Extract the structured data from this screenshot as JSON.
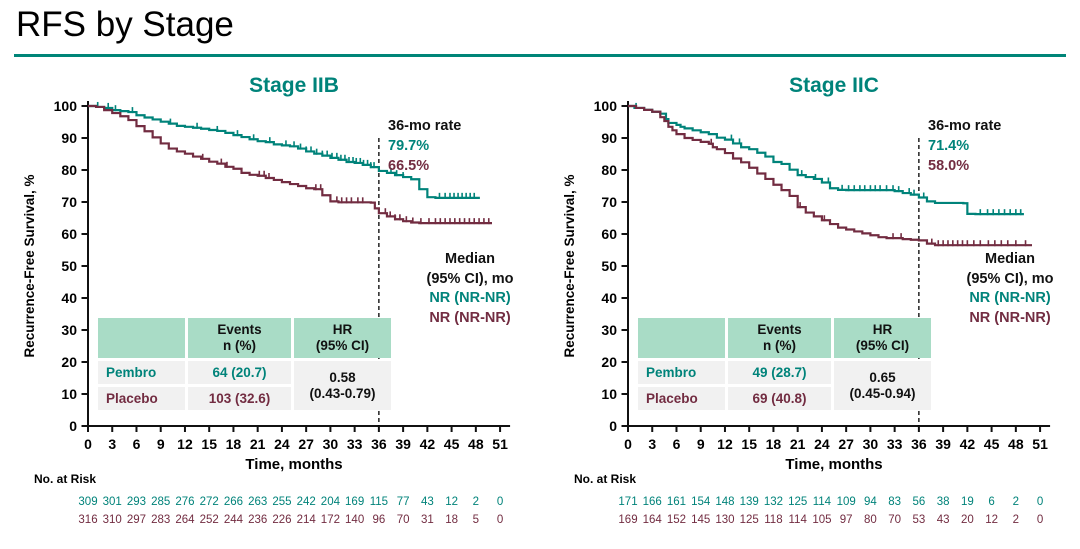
{
  "page": {
    "title": "RFS by Stage"
  },
  "colors": {
    "teal": "#00837A",
    "maroon": "#722C41",
    "header_green": "#A9DCC6",
    "cell_gray": "#F1F1F1",
    "rule_teal": "#008578"
  },
  "chart_data": [
    {
      "type": "line",
      "title": "Stage IIB",
      "xlabel": "Time, months",
      "ylabel": "Recurrence-Free Survival, %",
      "xlim": [
        0,
        51
      ],
      "ylim": [
        0,
        100
      ],
      "x_ticks": [
        0,
        3,
        6,
        9,
        12,
        15,
        18,
        21,
        24,
        27,
        30,
        33,
        36,
        39,
        42,
        45,
        48,
        51
      ],
      "y_ticks": [
        0,
        10,
        20,
        30,
        40,
        50,
        60,
        70,
        80,
        90,
        100
      ],
      "grid": false,
      "rate": {
        "label": "36-mo rate",
        "x": 36,
        "pembro": "79.7%",
        "placebo": "66.5%"
      },
      "median": {
        "line1": "Median",
        "line2": "(95% CI), mo",
        "pembro": "NR (NR-NR)",
        "placebo": "NR (NR-NR)"
      },
      "events_table": {
        "header_events": [
          "Events",
          "n (%)"
        ],
        "header_hr": [
          "HR",
          "(95% CI)"
        ],
        "rows": [
          {
            "name": "Pembro",
            "events": "64 (20.7)"
          },
          {
            "name": "Placebo",
            "events": "103 (32.6)"
          }
        ],
        "hr": [
          "0.58",
          "(0.43-0.79)"
        ]
      },
      "series": [
        {
          "name": "Pembro",
          "color": "#00837A",
          "points": [
            [
              0,
              100
            ],
            [
              1,
              99.7
            ],
            [
              2,
              99.4
            ],
            [
              3,
              98.7
            ],
            [
              4,
              98.4
            ],
            [
              5,
              98.1
            ],
            [
              6,
              97.1
            ],
            [
              7,
              96.4
            ],
            [
              8,
              95.8
            ],
            [
              9,
              95.1
            ],
            [
              10,
              94.5
            ],
            [
              11,
              93.8
            ],
            [
              12,
              93.5
            ],
            [
              13,
              93.2
            ],
            [
              14,
              92.9
            ],
            [
              15,
              92.5
            ],
            [
              16,
              92.2
            ],
            [
              17,
              91.6
            ],
            [
              18,
              90.9
            ],
            [
              19,
              90.3
            ],
            [
              20,
              89.6
            ],
            [
              21,
              89.0
            ],
            [
              22,
              88.7
            ],
            [
              23,
              88.0
            ],
            [
              24,
              87.7
            ],
            [
              25,
              87.4
            ],
            [
              26,
              86.7
            ],
            [
              27,
              85.8
            ],
            [
              28,
              85.1
            ],
            [
              29,
              84.5
            ],
            [
              30,
              83.8
            ],
            [
              31,
              83.2
            ],
            [
              32,
              82.5
            ],
            [
              33,
              82.2
            ],
            [
              34,
              81.6
            ],
            [
              35,
              80.9
            ],
            [
              36,
              79.7
            ],
            [
              37,
              79.1
            ],
            [
              38,
              78.4
            ],
            [
              39,
              77.8
            ],
            [
              40,
              77.1
            ],
            [
              41,
              74.0
            ],
            [
              42,
              71.5
            ],
            [
              43,
              71.3
            ],
            [
              48.5,
              71.3
            ]
          ],
          "censor_x": [
            1.2,
            2.5,
            3.4,
            5.5,
            10.2,
            13.5,
            16,
            18.5,
            20.5,
            22.5,
            24.5,
            25.5,
            26.3,
            27,
            27.6,
            28.3,
            29,
            29.6,
            30.2,
            30.8,
            31.3,
            31.8,
            32.3,
            32.8,
            33.2,
            33.7,
            34.1,
            34.6,
            35,
            35.4,
            37.5,
            38.2,
            39,
            43.5,
            44.2,
            44.8,
            45.3,
            45.8,
            46.3,
            46.8,
            47.3,
            47.8
          ]
        },
        {
          "name": "Placebo",
          "color": "#722C41",
          "points": [
            [
              0,
              100
            ],
            [
              1,
              99.7
            ],
            [
              2,
              98.7
            ],
            [
              3,
              97.8
            ],
            [
              4,
              96.8
            ],
            [
              5,
              95.6
            ],
            [
              6,
              93.7
            ],
            [
              7,
              92.1
            ],
            [
              8,
              90.2
            ],
            [
              9,
              88.3
            ],
            [
              10,
              86.7
            ],
            [
              11,
              85.8
            ],
            [
              12,
              85.1
            ],
            [
              13,
              84.2
            ],
            [
              14,
              83.5
            ],
            [
              15,
              82.6
            ],
            [
              16,
              82.0
            ],
            [
              17,
              81.0
            ],
            [
              18,
              80.4
            ],
            [
              19,
              79.1
            ],
            [
              20,
              78.5
            ],
            [
              21,
              78.2
            ],
            [
              22,
              77.5
            ],
            [
              23,
              76.9
            ],
            [
              24,
              76.2
            ],
            [
              25,
              75.6
            ],
            [
              26,
              75.0
            ],
            [
              27,
              74.3
            ],
            [
              28,
              74.0
            ],
            [
              29,
              72.1
            ],
            [
              30,
              70.2
            ],
            [
              31,
              69.9
            ],
            [
              35,
              69.8
            ],
            [
              35.5,
              68.0
            ],
            [
              36,
              66.5
            ],
            [
              37,
              65.5
            ],
            [
              38,
              64.6
            ],
            [
              39,
              64.0
            ],
            [
              40,
              63.6
            ],
            [
              41,
              63.4
            ],
            [
              50,
              63.4
            ]
          ],
          "censor_x": [
            14.2,
            16.5,
            17.2,
            21.2,
            21.8,
            22.4,
            28.2,
            28.8,
            30.8,
            31.4,
            32,
            32.6,
            33.4,
            34,
            36.8,
            37.4,
            38,
            38.6,
            39.4,
            40.2,
            41.2,
            42.2,
            43,
            43.6,
            44.2,
            44.8,
            45.4,
            46,
            46.6,
            47.2,
            47.8,
            48.4,
            49,
            49.6
          ]
        }
      ],
      "no_at_risk": {
        "label": "No. at Risk",
        "rows": [
          {
            "name": "Pembro",
            "color": "#00837A",
            "values": [
              309,
              301,
              293,
              285,
              276,
              272,
              266,
              263,
              255,
              242,
              204,
              169,
              115,
              77,
              43,
              12,
              2,
              0
            ]
          },
          {
            "name": "Placebo",
            "color": "#722C41",
            "values": [
              316,
              310,
              297,
              283,
              264,
              252,
              244,
              236,
              226,
              214,
              172,
              140,
              96,
              70,
              31,
              18,
              5,
              0
            ]
          }
        ]
      }
    },
    {
      "type": "line",
      "title": "Stage IIC",
      "xlabel": "Time, months",
      "ylabel": "Recurrence-Free Survival, %",
      "xlim": [
        0,
        51
      ],
      "ylim": [
        0,
        100
      ],
      "x_ticks": [
        0,
        3,
        6,
        9,
        12,
        15,
        18,
        21,
        24,
        27,
        30,
        33,
        36,
        39,
        42,
        45,
        48,
        51
      ],
      "y_ticks": [
        0,
        10,
        20,
        30,
        40,
        50,
        60,
        70,
        80,
        90,
        100
      ],
      "grid": false,
      "rate": {
        "label": "36-mo rate",
        "x": 36,
        "pembro": "71.4%",
        "placebo": "58.0%"
      },
      "median": {
        "line1": "Median",
        "line2": "(95% CI), mo",
        "pembro": "NR (NR-NR)",
        "placebo": "NR (NR-NR)"
      },
      "events_table": {
        "header_events": [
          "Events",
          "n (%)"
        ],
        "header_hr": [
          "HR",
          "(95% CI)"
        ],
        "rows": [
          {
            "name": "Pembro",
            "events": "49 (28.7)"
          },
          {
            "name": "Placebo",
            "events": "69 (40.8)"
          }
        ],
        "hr": [
          "0.65",
          "(0.45-0.94)"
        ]
      },
      "series": [
        {
          "name": "Pembro",
          "color": "#00837A",
          "points": [
            [
              0,
              100
            ],
            [
              0.8,
              99.4
            ],
            [
              2,
              98.8
            ],
            [
              3,
              98.2
            ],
            [
              4,
              97.6
            ],
            [
              4.7,
              95.9
            ],
            [
              5,
              94.7
            ],
            [
              6,
              94.1
            ],
            [
              6.5,
              93.5
            ],
            [
              7,
              93.0
            ],
            [
              8,
              92.4
            ],
            [
              9,
              91.8
            ],
            [
              10,
              91.2
            ],
            [
              11,
              90.1
            ],
            [
              12,
              89.5
            ],
            [
              13,
              88.3
            ],
            [
              14,
              87.1
            ],
            [
              15,
              86.5
            ],
            [
              16,
              85.4
            ],
            [
              17,
              84.2
            ],
            [
              18,
              82.5
            ],
            [
              19,
              81.9
            ],
            [
              20,
              80.1
            ],
            [
              21,
              78.4
            ],
            [
              22,
              77.8
            ],
            [
              23,
              77.2
            ],
            [
              24,
              76.1
            ],
            [
              25,
              74.3
            ],
            [
              26,
              73.8
            ],
            [
              27,
              73.7
            ],
            [
              33,
              73.4
            ],
            [
              34,
              72.8
            ],
            [
              35,
              72.3
            ],
            [
              36,
              71.4
            ],
            [
              37,
              70.2
            ],
            [
              38,
              69.7
            ],
            [
              41.5,
              69.6
            ],
            [
              42,
              66.3
            ],
            [
              43,
              66.2
            ],
            [
              49,
              66.2
            ]
          ],
          "censor_x": [
            1,
            12.8,
            13.8,
            21.5,
            23.2,
            24.8,
            26.5,
            27.3,
            28,
            28.7,
            29.3,
            30,
            30.6,
            31.2,
            32,
            32.8,
            33.5,
            34.8,
            35.4,
            36.6,
            43.6,
            44.5,
            45.2,
            45.9,
            46.6,
            47.3,
            48,
            48.6
          ]
        },
        {
          "name": "Placebo",
          "color": "#722C41",
          "points": [
            [
              0,
              100
            ],
            [
              1,
              99.4
            ],
            [
              2,
              98.8
            ],
            [
              3,
              98.2
            ],
            [
              4,
              96.5
            ],
            [
              4.5,
              95.3
            ],
            [
              5,
              93.5
            ],
            [
              5.5,
              92.4
            ],
            [
              6,
              91.2
            ],
            [
              7,
              90.0
            ],
            [
              8,
              89.4
            ],
            [
              9,
              88.8
            ],
            [
              10,
              88.2
            ],
            [
              10.5,
              87.1
            ],
            [
              11,
              86.5
            ],
            [
              12,
              85.3
            ],
            [
              13,
              83.6
            ],
            [
              14,
              82.4
            ],
            [
              15,
              80.7
            ],
            [
              16,
              78.9
            ],
            [
              17,
              77.2
            ],
            [
              18,
              75.4
            ],
            [
              19,
              73.7
            ],
            [
              20,
              71.9
            ],
            [
              21,
              68.4
            ],
            [
              22,
              66.7
            ],
            [
              23,
              65.5
            ],
            [
              24,
              64.3
            ],
            [
              25,
              63.1
            ],
            [
              26,
              62.0
            ],
            [
              27,
              61.4
            ],
            [
              28,
              60.8
            ],
            [
              29,
              60.2
            ],
            [
              30,
              59.6
            ],
            [
              31,
              59.0
            ],
            [
              32,
              58.7
            ],
            [
              34,
              58.4
            ],
            [
              35,
              58.2
            ],
            [
              36,
              58.0
            ],
            [
              37,
              57.0
            ],
            [
              38,
              56.5
            ],
            [
              50,
              56.5
            ]
          ],
          "censor_x": [
            10.3,
            21.3,
            24.3,
            32.8,
            33.8,
            37.6,
            38.4,
            39,
            39.6,
            40.2,
            40.8,
            41.4,
            42,
            42.8,
            43.6,
            44.6,
            45.4,
            46.2,
            47,
            48,
            49.2
          ]
        }
      ],
      "no_at_risk": {
        "label": "No. at Risk",
        "rows": [
          {
            "name": "Pembro",
            "color": "#00837A",
            "values": [
              171,
              166,
              161,
              154,
              148,
              139,
              132,
              125,
              114,
              109,
              94,
              83,
              56,
              38,
              19,
              6,
              2,
              0
            ]
          },
          {
            "name": "Placebo",
            "color": "#722C41",
            "values": [
              169,
              164,
              152,
              145,
              130,
              125,
              118,
              114,
              105,
              97,
              80,
              70,
              53,
              43,
              20,
              12,
              2,
              0
            ]
          }
        ]
      }
    }
  ]
}
